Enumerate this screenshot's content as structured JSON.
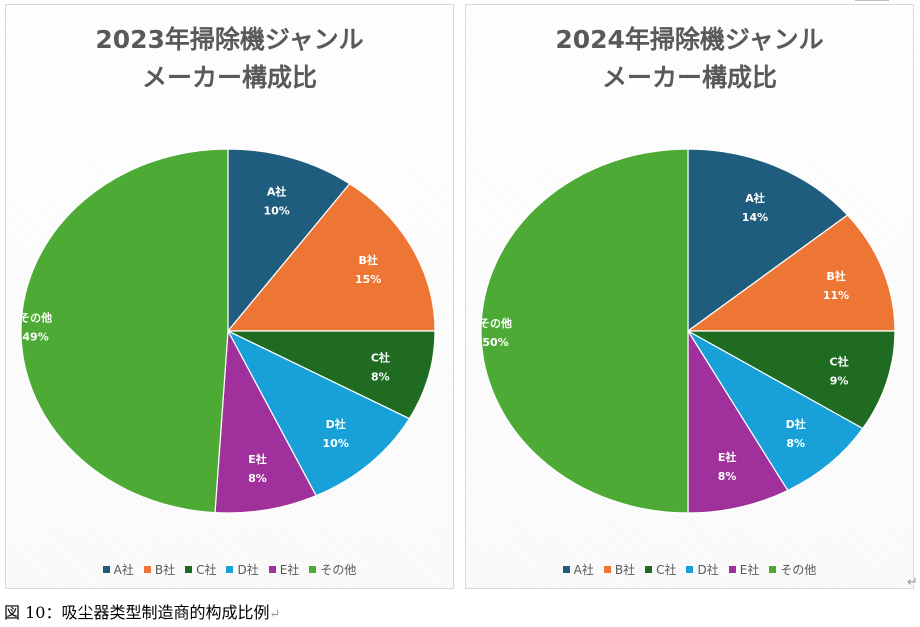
{
  "chart_data": [
    {
      "type": "pie",
      "title_lines": [
        "2023年掃除機ジャンル",
        "メーカー構成比"
      ],
      "slices": [
        {
          "label": "A社",
          "pct_label": "10%",
          "value": 10,
          "color": "#1f5d7f"
        },
        {
          "label": "B社",
          "pct_label": "15%",
          "value": 15,
          "color": "#ee7634"
        },
        {
          "label": "C社",
          "pct_label": "8%",
          "value": 8,
          "color": "#1f6b22"
        },
        {
          "label": "D社",
          "pct_label": "10%",
          "value": 10,
          "color": "#18a1d8"
        },
        {
          "label": "E社",
          "pct_label": "8%",
          "value": 8,
          "color": "#a0309b"
        },
        {
          "label": "その他",
          "pct_label": "49%",
          "value": 49,
          "color": "#4caa35"
        }
      ],
      "legend_position": "bottom"
    },
    {
      "type": "pie",
      "title_lines": [
        "2024年掃除機ジャンル",
        "メーカー構成比"
      ],
      "slices": [
        {
          "label": "A社",
          "pct_label": "14%",
          "value": 14,
          "color": "#1f5d7f"
        },
        {
          "label": "B社",
          "pct_label": "11%",
          "value": 11,
          "color": "#ee7634"
        },
        {
          "label": "C社",
          "pct_label": "9%",
          "value": 9,
          "color": "#1f6b22"
        },
        {
          "label": "D社",
          "pct_label": "8%",
          "value": 8,
          "color": "#18a1d8"
        },
        {
          "label": "E社",
          "pct_label": "8%",
          "value": 8,
          "color": "#a0309b"
        },
        {
          "label": "その他",
          "pct_label": "50%",
          "value": 50,
          "color": "#4caa35"
        }
      ],
      "legend_position": "bottom"
    }
  ],
  "caption": {
    "text": "図 10：吸尘器类型制造商的构成比例",
    "return_mark": "↵"
  },
  "corner_return_mark": "↵"
}
